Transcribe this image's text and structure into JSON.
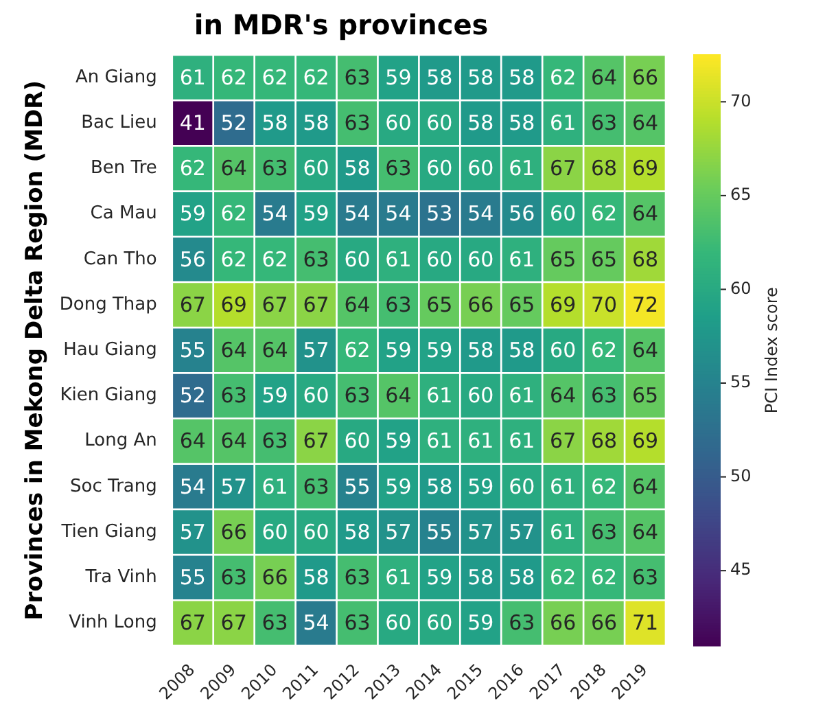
{
  "chart_data": {
    "type": "heatmap",
    "title": "in MDR's provinces",
    "ylabel": "Provinces in Mekong Delta Region (MDR)",
    "clabel": "PCI Index score",
    "categories": [
      "2008",
      "2009",
      "2010",
      "2011",
      "2012",
      "2013",
      "2014",
      "2015",
      "2016",
      "2017",
      "2018",
      "2019"
    ],
    "y_categories": [
      "An Giang",
      "Bac Lieu",
      "Ben Tre",
      "Ca Mau",
      "Can Tho",
      "Dong Thap",
      "Hau Giang",
      "Kien Giang",
      "Long An",
      "Soc Trang",
      "Tien Giang",
      "Tra Vinh",
      "Vinh Long"
    ],
    "cells": [
      [
        61,
        62,
        62,
        62,
        63,
        59,
        58,
        58,
        58,
        62,
        64,
        66
      ],
      [
        41,
        52,
        58,
        58,
        63,
        60,
        60,
        58,
        58,
        61,
        63,
        64
      ],
      [
        62,
        64,
        63,
        60,
        58,
        63,
        60,
        60,
        61,
        67,
        68,
        69
      ],
      [
        59,
        62,
        54,
        59,
        54,
        54,
        53,
        54,
        56,
        60,
        62,
        64
      ],
      [
        56,
        62,
        62,
        63,
        60,
        61,
        60,
        60,
        61,
        65,
        65,
        68
      ],
      [
        67,
        69,
        67,
        67,
        64,
        63,
        65,
        66,
        65,
        69,
        70,
        72
      ],
      [
        55,
        64,
        64,
        57,
        62,
        59,
        59,
        58,
        58,
        60,
        62,
        64
      ],
      [
        52,
        63,
        59,
        60,
        63,
        64,
        61,
        60,
        61,
        64,
        63,
        65
      ],
      [
        64,
        64,
        63,
        67,
        60,
        59,
        61,
        61,
        61,
        67,
        68,
        69
      ],
      [
        54,
        57,
        61,
        63,
        55,
        59,
        58,
        59,
        60,
        61,
        62,
        64
      ],
      [
        57,
        66,
        60,
        60,
        58,
        57,
        55,
        57,
        57,
        61,
        63,
        64
      ],
      [
        55,
        63,
        66,
        58,
        63,
        61,
        59,
        58,
        58,
        62,
        62,
        63
      ],
      [
        67,
        67,
        63,
        54,
        63,
        60,
        60,
        59,
        63,
        66,
        66,
        71
      ]
    ],
    "clim": [
      41,
      72.5
    ],
    "cticks": [
      45,
      50,
      55,
      60,
      65,
      70
    ],
    "data_labels": true
  }
}
